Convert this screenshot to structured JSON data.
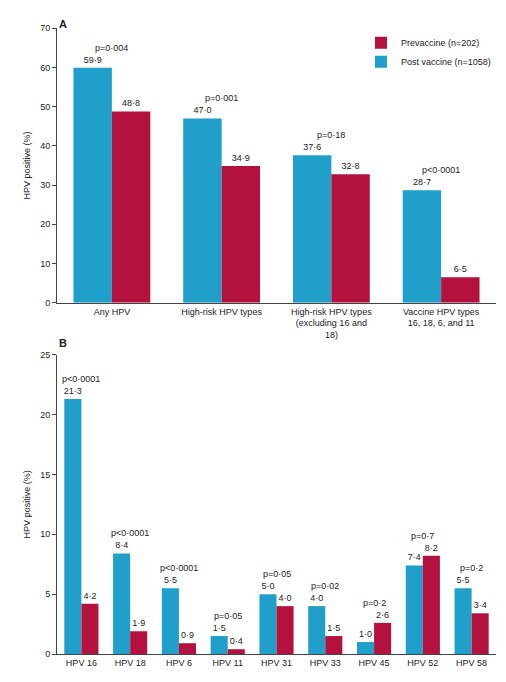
{
  "chart_data": [
    {
      "type": "bar",
      "title": "A",
      "ylabel": "HPV positive (%)",
      "categories": [
        "Any HPV",
        "High-risk HPV types",
        "High-risk HPV types (excluding 16 and 18)",
        "Vaccine HPV types 16, 18, 6, and 11"
      ],
      "series": [
        {
          "name": "Post vaccine (n=1058)",
          "color": "#1f9fc9",
          "values": [
            59.9,
            47.0,
            37.6,
            28.7
          ],
          "value_labels": [
            "59·9",
            "47·0",
            "37·6",
            "28·7"
          ]
        },
        {
          "name": "Prevaccine (n=202)",
          "color": "#b3123f",
          "values": [
            48.8,
            34.9,
            32.8,
            6.5
          ],
          "value_labels": [
            "48·8",
            "34·9",
            "32·8",
            "6·5"
          ]
        }
      ],
      "annotations": [
        "p=0·004",
        "p=0·001",
        "p=0·18",
        "p<0·0001"
      ],
      "ylim": [
        0,
        70
      ],
      "yticks": [
        0,
        10,
        20,
        30,
        40,
        50,
        60,
        70
      ],
      "grid": false,
      "data_labels": true,
      "legend": "top right"
    },
    {
      "type": "bar",
      "title": "B",
      "ylabel": "HPV positive (%)",
      "categories": [
        "HPV 16",
        "HPV 18",
        "HPV 6",
        "HPV 11",
        "HPV 31",
        "HPV 33",
        "HPV 45",
        "HPV 52",
        "HPV 58"
      ],
      "series": [
        {
          "color": "#1f9fc9",
          "values": [
            21.3,
            8.4,
            5.5,
            1.5,
            5.0,
            4.0,
            1.0,
            7.4,
            5.5
          ],
          "value_labels": [
            "21·3",
            "8·4",
            "5·5",
            "1·5",
            "5·0",
            "4·0",
            "1·0",
            "7·4",
            "5·5"
          ]
        },
        {
          "color": "#b3123f",
          "values": [
            4.2,
            1.9,
            0.9,
            0.4,
            4.0,
            1.5,
            2.6,
            8.2,
            3.4
          ],
          "value_labels": [
            "4·2",
            "1·9",
            "0·9",
            "0·4",
            "4·0",
            "1·5",
            "2·6",
            "8·2",
            "3·4"
          ]
        }
      ],
      "annotations": [
        "p<0·0001",
        "p<0·0001",
        "p<0·0001",
        "p=0·05",
        "p=0·05",
        "p=0·02",
        "p=0·2",
        "p=0·7",
        "p=0·2"
      ],
      "ylim": [
        0,
        25
      ],
      "yticks": [
        0,
        5,
        10,
        15,
        20,
        25
      ],
      "grid": false,
      "data_labels": true
    }
  ]
}
